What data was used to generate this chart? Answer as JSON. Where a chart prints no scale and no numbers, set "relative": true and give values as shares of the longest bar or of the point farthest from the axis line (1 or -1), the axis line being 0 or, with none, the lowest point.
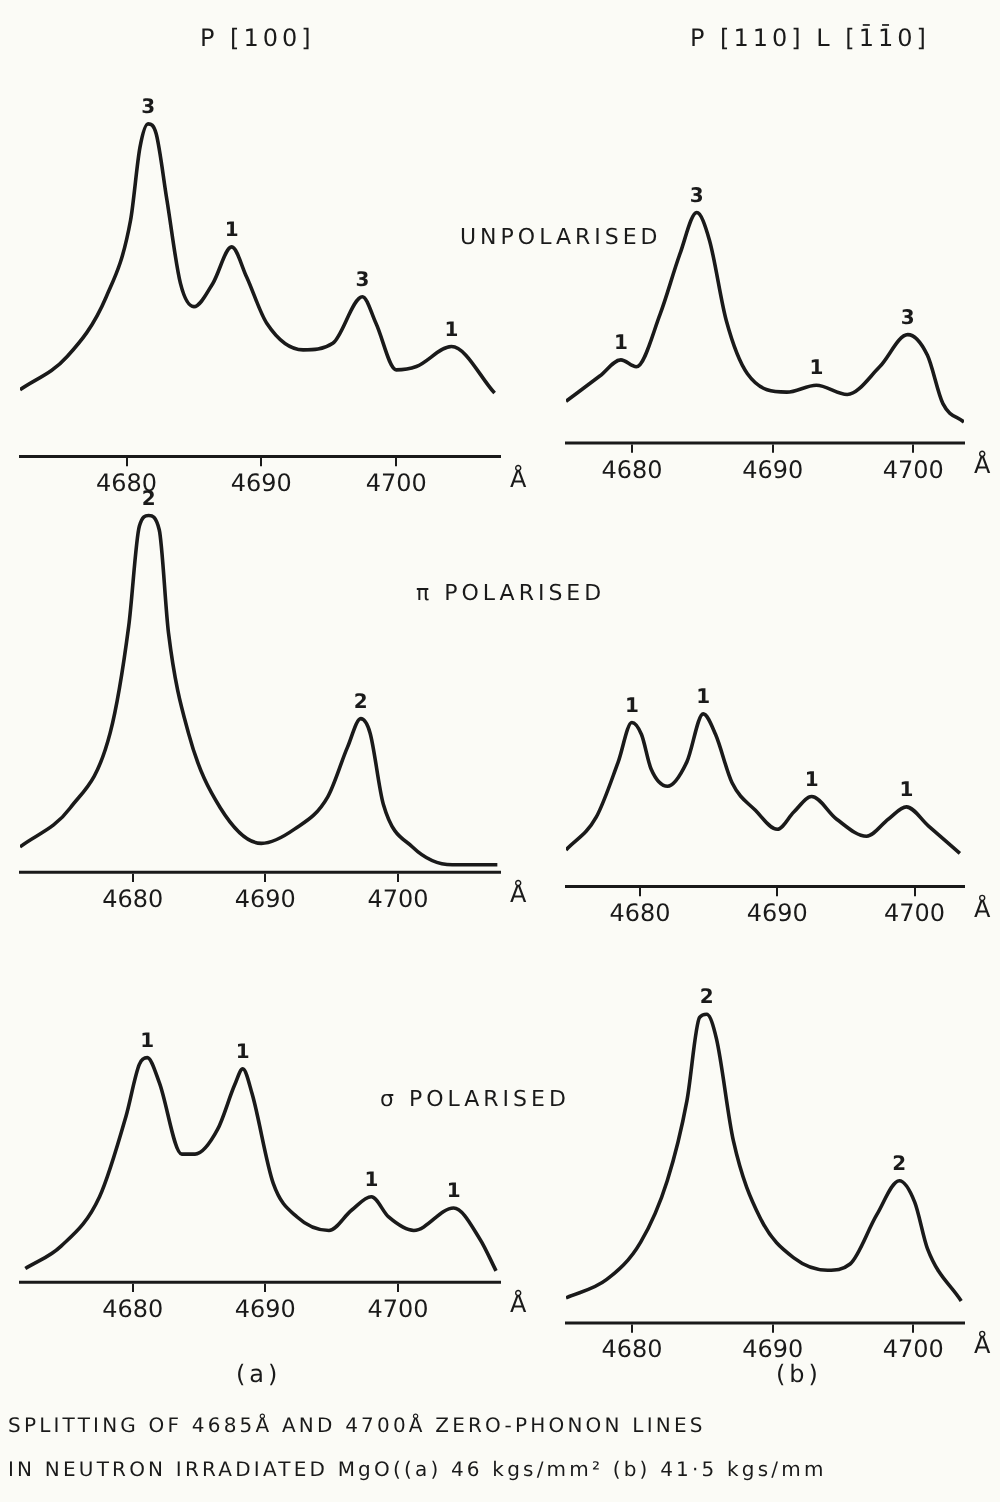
{
  "chart_data": [
    {
      "type": "line",
      "relative": true,
      "title": "P [100]",
      "subtitle": "UNPOLARISED",
      "xlabel": "Å",
      "xlim": [
        4672.1,
        4707.7
      ],
      "xticks": [
        4680,
        4690,
        4700
      ],
      "marker": "none",
      "color": "#1a1a1a",
      "x": [
        4672.1,
        4675.6,
        4678.5,
        4680.3,
        4681.0,
        4681.6,
        4682.2,
        4683.0,
        4684.0,
        4685.0,
        4686.4,
        4687.8,
        4688.9,
        4690.4,
        4693.1,
        4695.3,
        4697.5,
        4698.5,
        4700.0,
        4701.5,
        4704.1,
        4707.3
      ],
      "values": [
        0.2,
        0.3,
        0.48,
        0.71,
        0.93,
        1.0,
        0.97,
        0.77,
        0.52,
        0.45,
        0.52,
        0.63,
        0.54,
        0.4,
        0.32,
        0.34,
        0.48,
        0.4,
        0.26,
        0.27,
        0.33,
        0.19
      ],
      "annotations": [
        {
          "text": "3",
          "x": 4681.6,
          "y": 1.0
        },
        {
          "text": "1",
          "x": 4687.8,
          "y": 0.63
        },
        {
          "text": "3",
          "x": 4697.5,
          "y": 0.48
        },
        {
          "text": "1",
          "x": 4704.1,
          "y": 0.33
        }
      ]
    },
    {
      "type": "line",
      "relative": true,
      "title": "P [110] L [1̄1̄0]",
      "xlabel": "Å",
      "xlim": [
        4675.3,
        4703.6
      ],
      "xticks": [
        4680,
        4690,
        4700
      ],
      "marker": "none",
      "color": "#1a1a1a",
      "x": [
        4675.3,
        4677.7,
        4679.2,
        4680.3,
        4682.0,
        4683.4,
        4684.6,
        4685.5,
        4686.7,
        4688.2,
        4691.0,
        4693.1,
        4695.3,
        4697.6,
        4699.6,
        4701.0,
        4702.1,
        4703.6
      ],
      "values": [
        0.18,
        0.29,
        0.36,
        0.33,
        0.56,
        0.82,
        1.0,
        0.88,
        0.53,
        0.3,
        0.22,
        0.25,
        0.21,
        0.33,
        0.47,
        0.38,
        0.17,
        0.09
      ],
      "annotations": [
        {
          "text": "1",
          "x": 4679.2,
          "y": 0.36
        },
        {
          "text": "3",
          "x": 4684.6,
          "y": 1.0
        },
        {
          "text": "1",
          "x": 4693.1,
          "y": 0.25
        },
        {
          "text": "3",
          "x": 4699.6,
          "y": 0.47
        }
      ]
    },
    {
      "type": "line",
      "relative": true,
      "subtitle": "π POLARISED",
      "xlabel": "Å",
      "xlim": [
        4671.5,
        4707.7
      ],
      "xticks": [
        4680,
        4690,
        4700
      ],
      "marker": "none",
      "color": "#1a1a1a",
      "x": [
        4671.5,
        4675.3,
        4678.3,
        4679.7,
        4680.5,
        4681.2,
        4682.0,
        4682.7,
        4684.2,
        4686.6,
        4689.7,
        4692.2,
        4694.7,
        4696.2,
        4697.2,
        4697.9,
        4698.9,
        4701.1,
        4704.1,
        4707.5
      ],
      "values": [
        0.07,
        0.18,
        0.39,
        0.69,
        0.97,
        1.0,
        0.96,
        0.67,
        0.39,
        0.18,
        0.08,
        0.12,
        0.21,
        0.35,
        0.43,
        0.39,
        0.19,
        0.07,
        0.02,
        0.02
      ],
      "annotations": [
        {
          "text": "2",
          "x": 4681.2,
          "y": 1.0
        },
        {
          "text": "2",
          "x": 4697.2,
          "y": 0.43
        }
      ]
    },
    {
      "type": "line",
      "relative": true,
      "xlabel": "Å",
      "xlim": [
        4674.6,
        4703.6
      ],
      "xticks": [
        4680,
        4690,
        4700
      ],
      "marker": "none",
      "color": "#1a1a1a",
      "x": [
        4674.6,
        4676.8,
        4678.4,
        4679.4,
        4680.1,
        4680.8,
        4682.0,
        4683.4,
        4684.6,
        4685.5,
        4686.7,
        4688.4,
        4690.0,
        4691.2,
        4692.5,
        4694.3,
        4696.5,
        4698.1,
        4699.4,
        4701.0,
        4703.3
      ],
      "values": [
        0.21,
        0.4,
        0.72,
        0.95,
        0.88,
        0.68,
        0.58,
        0.72,
        1.0,
        0.88,
        0.6,
        0.44,
        0.33,
        0.43,
        0.52,
        0.39,
        0.29,
        0.39,
        0.46,
        0.35,
        0.19
      ],
      "annotations": [
        {
          "text": "1",
          "x": 4679.4,
          "y": 0.95
        },
        {
          "text": "1",
          "x": 4684.6,
          "y": 1.0
        },
        {
          "text": "1",
          "x": 4692.5,
          "y": 0.52
        },
        {
          "text": "1",
          "x": 4699.4,
          "y": 0.46
        }
      ]
    },
    {
      "type": "line",
      "relative": true,
      "subtitle": "σ POLARISED",
      "xlabel": "Å",
      "xlim": [
        4671.5,
        4707.7
      ],
      "xticks": [
        4680,
        4690,
        4700
      ],
      "marker": "none",
      "color": "#1a1a1a",
      "x": [
        4671.9,
        4674.6,
        4677.5,
        4679.5,
        4680.5,
        4681.1,
        4682.0,
        4683.7,
        4684.7,
        4686.4,
        4687.7,
        4688.3,
        4689.0,
        4690.6,
        4692.4,
        4694.8,
        4696.5,
        4698.0,
        4699.3,
        4701.2,
        4704.2,
        4706.2,
        4707.4
      ],
      "values": [
        0.06,
        0.16,
        0.38,
        0.74,
        0.97,
        1.0,
        0.89,
        0.57,
        0.57,
        0.68,
        0.88,
        0.95,
        0.84,
        0.44,
        0.29,
        0.23,
        0.32,
        0.38,
        0.29,
        0.23,
        0.33,
        0.19,
        0.05
      ],
      "annotations": [
        "(a)",
        "SPLITTING OF 4685Å AND 4700Å ZERO-PHONON LINES",
        "IN NEUTRON IRRADIATED MgO((a) 46 kgs/mm² (b) 41·5 kgs/mm",
        {
          "text": "1",
          "x": 4681.1,
          "y": 1.0
        },
        {
          "text": "1",
          "x": 4688.3,
          "y": 0.95
        },
        {
          "text": "1",
          "x": 4698.0,
          "y": 0.38
        },
        {
          "text": "1",
          "x": 4704.2,
          "y": 0.33
        }
      ]
    },
    {
      "type": "line",
      "relative": true,
      "xlabel": "Å",
      "xlim": [
        4675.3,
        4703.6
      ],
      "xticks": [
        4680,
        4690,
        4700
      ],
      "marker": "none",
      "color": "#1a1a1a",
      "x": [
        4675.3,
        4678.2,
        4680.6,
        4682.5,
        4683.9,
        4684.8,
        4685.3,
        4686.0,
        4687.2,
        4689.1,
        4691.5,
        4693.9,
        4695.5,
        4697.4,
        4699.0,
        4700.1,
        4701.0,
        4703.4
      ],
      "values": [
        0.08,
        0.14,
        0.26,
        0.46,
        0.72,
        0.99,
        1.0,
        0.92,
        0.59,
        0.34,
        0.21,
        0.17,
        0.19,
        0.35,
        0.46,
        0.39,
        0.24,
        0.07
      ],
      "annotations": [
        "(b)",
        {
          "text": "2",
          "x": 4685.3,
          "y": 1.0
        },
        {
          "text": "2",
          "x": 4699.0,
          "y": 0.46
        }
      ]
    }
  ]
}
